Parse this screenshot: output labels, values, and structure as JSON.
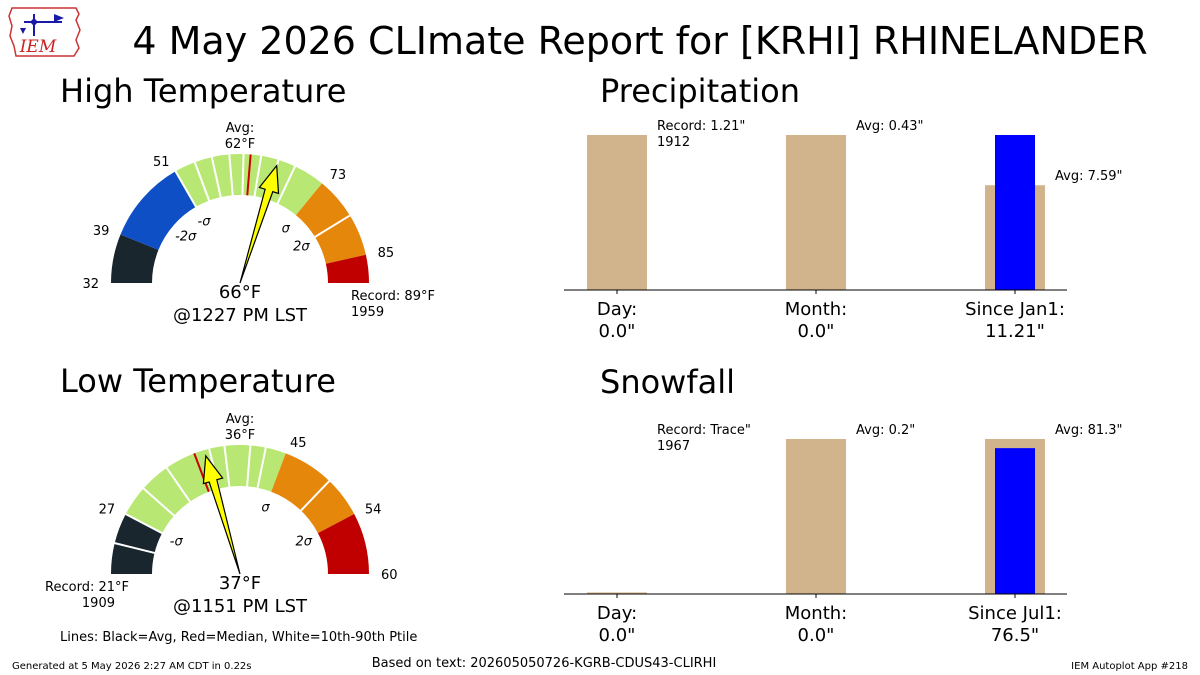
{
  "title": "4 May 2026 CLImate Report for [KRHI] RHINELANDER",
  "logo": {
    "text": "IEM",
    "icon": "iowa-state-logo"
  },
  "footer": {
    "generated": "Generated at 5 May 2026 2:27 AM CDT in 0.22s",
    "based_on": "Based on text: 202605050726-KGRB-CDUS43-CLIRHI",
    "app": "IEM Autoplot App #218",
    "lines_note": "Lines: Black=Avg, Red=Median, White=10th-90th Ptile"
  },
  "colors": {
    "below_2sigma": "#1a262d",
    "below_1sigma": "#0f4fc5",
    "normal": "#b8e873",
    "above_1sigma": "#e4870a",
    "above_2sigma": "#c00000",
    "median_line": "#cc0000",
    "needle": "#ffff00",
    "avg_bar": "#d2b48c",
    "obs_bar": "#0000ff"
  },
  "chart_data": [
    {
      "type": "gauge",
      "title": "High Temperature",
      "unit": "°F",
      "range": [
        32,
        85
      ],
      "scale_max": 89,
      "ticks": [
        {
          "value": 32,
          "label": "32"
        },
        {
          "value": 39,
          "label": "39"
        },
        {
          "value": 51,
          "label": "51"
        },
        {
          "value": 73,
          "label": "73"
        },
        {
          "value": 85,
          "label": "85"
        }
      ],
      "sigma_labels": [
        {
          "value": 45,
          "label": "-2σ"
        },
        {
          "value": 51,
          "label": "-σ"
        },
        {
          "value": 73,
          "label": "σ"
        },
        {
          "value": 79,
          "label": "2σ"
        }
      ],
      "bands": [
        {
          "from": 32,
          "to": 39,
          "color": "#1a262d"
        },
        {
          "from": 39,
          "to": 51,
          "color": "#0f4fc5"
        },
        {
          "from": 51,
          "to": 73,
          "color": "#b8e873"
        },
        {
          "from": 73,
          "to": 85,
          "color": "#e4870a"
        },
        {
          "from": 85,
          "to": 89,
          "color": "#c00000"
        }
      ],
      "percentile_lines": [
        51,
        54,
        56.5,
        59,
        61,
        63.5,
        66,
        68.5,
        79
      ],
      "median": 62,
      "avg": 62,
      "avg_label": "Avg:",
      "avg_value": "62°F",
      "observed": 66,
      "observed_label": "66°F",
      "time_label": "@1227 PM LST",
      "record_label": "Record: 89°F",
      "record_year": "1959",
      "record_side": "right"
    },
    {
      "type": "gauge",
      "title": "Low Temperature",
      "unit": "°F",
      "range": [
        21,
        60
      ],
      "scale_max": 60,
      "ticks": [
        {
          "value": 27,
          "label": "27"
        },
        {
          "value": 45,
          "label": "45"
        },
        {
          "value": 54,
          "label": "54"
        },
        {
          "value": 60,
          "label": "60"
        }
      ],
      "sigma_labels": [
        {
          "value": 27,
          "label": "-σ"
        },
        {
          "value": 45,
          "label": "σ"
        },
        {
          "value": 54,
          "label": "2σ"
        }
      ],
      "bands": [
        {
          "from": 21,
          "to": 27,
          "color": "#1a262d"
        },
        {
          "from": 27,
          "to": 45,
          "color": "#b8e873"
        },
        {
          "from": 45,
          "to": 54,
          "color": "#e4870a"
        },
        {
          "from": 54,
          "to": 60,
          "color": "#c00000"
        }
      ],
      "percentile_lines": [
        24,
        27,
        30,
        33,
        37.5,
        39,
        41.5,
        43,
        50
      ],
      "median": 36,
      "avg": 36,
      "avg_label": "Avg:",
      "avg_value": "36°F",
      "observed": 37,
      "observed_label": "37°F",
      "time_label": "@1151 PM LST",
      "record_label": "Record: 21°F",
      "record_year": "1909",
      "record_side": "left"
    },
    {
      "type": "bar",
      "title": "Precipitation",
      "unit": "\"",
      "categories": [
        {
          "label": "Day:",
          "value_label": "0.0\""
        },
        {
          "label": "Month:",
          "value_label": "0.0\""
        },
        {
          "label": "Since Jan1:",
          "value_label": "11.21\""
        }
      ],
      "series": [
        {
          "values": [
            1.0,
            1.0,
            0.676
          ]
        },
        {
          "values": [
            0.0,
            0.0,
            1.0
          ]
        }
      ],
      "annotations": [
        {
          "category": 0,
          "value": 1.0,
          "text": "Record: 1.21\"",
          "sub": "1912"
        },
        {
          "category": 1,
          "value": 1.0,
          "text": "Avg: 0.43\"",
          "sub": ""
        },
        {
          "category": 2,
          "value": 0.676,
          "text": "Avg: 7.59\"",
          "sub": ""
        }
      ],
      "ylim": [
        0,
        1
      ]
    },
    {
      "type": "bar",
      "title": "Snowfall",
      "unit": "\"",
      "categories": [
        {
          "label": "Day:",
          "value_label": "0.0\""
        },
        {
          "label": "Month:",
          "value_label": "0.0\""
        },
        {
          "label": "Since Jul1:",
          "value_label": "76.5\""
        }
      ],
      "series": [
        {
          "values": [
            0.01,
            1.0,
            1.0
          ]
        },
        {
          "values": [
            0.0,
            0.0,
            0.941
          ]
        }
      ],
      "annotations": [
        {
          "category": 0,
          "value": 1.0,
          "text": "Record: Trace\"",
          "sub": "1967"
        },
        {
          "category": 1,
          "value": 1.0,
          "text": "Avg: 0.2\"",
          "sub": ""
        },
        {
          "category": 2,
          "value": 1.0,
          "text": "Avg: 81.3\"",
          "sub": ""
        }
      ],
      "ylim": [
        0,
        1
      ]
    }
  ]
}
